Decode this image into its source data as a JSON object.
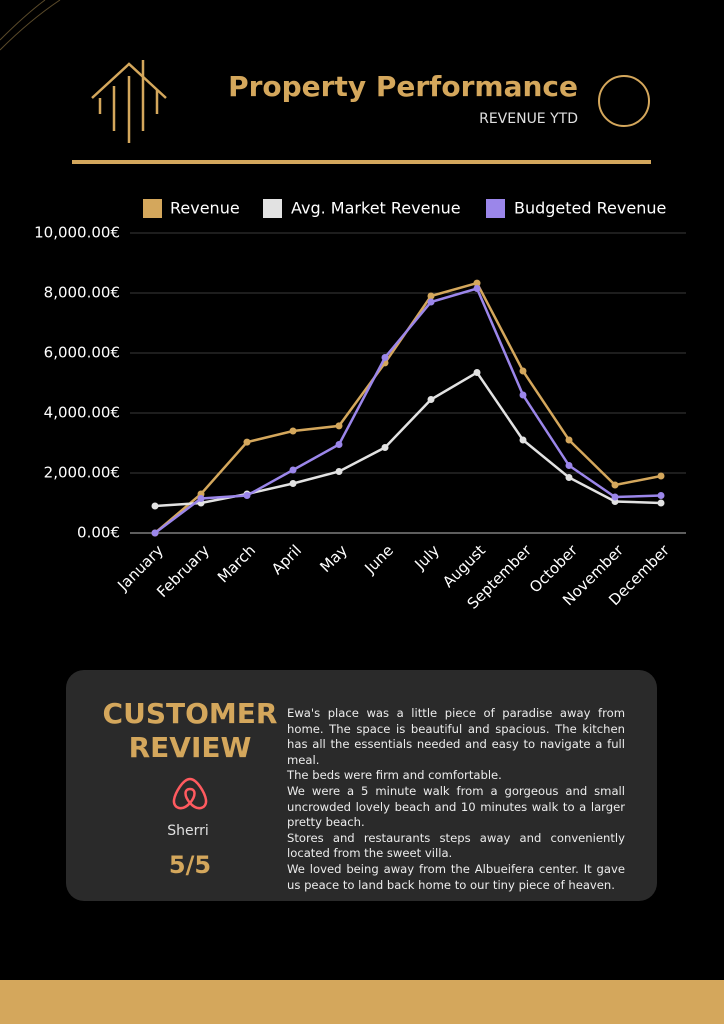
{
  "header": {
    "title": "Property Performance",
    "subtitle": "REVENUE YTD"
  },
  "chart_data": {
    "type": "line",
    "categories": [
      "January",
      "February",
      "March",
      "April",
      "May",
      "June",
      "July",
      "August",
      "September",
      "October",
      "November",
      "December"
    ],
    "series": [
      {
        "name": "Revenue",
        "color": "#d4a75c",
        "values": [
          0,
          1300,
          3030,
          3400,
          3570,
          5670,
          7900,
          8330,
          5400,
          3100,
          1600,
          1900
        ]
      },
      {
        "name": "Avg. Market Revenue",
        "color": "#e2e2e2",
        "values": [
          900,
          1000,
          1300,
          1650,
          2050,
          2850,
          4450,
          5350,
          3100,
          1850,
          1050,
          1000
        ]
      },
      {
        "name": "Budgeted Revenue",
        "color": "#9b86ea",
        "values": [
          0,
          1150,
          1250,
          2100,
          2950,
          5850,
          7700,
          8150,
          4600,
          2250,
          1200,
          1250
        ]
      }
    ],
    "ylim": [
      0,
      10000
    ],
    "yticks": [
      {
        "value": 0,
        "label": "0.00€"
      },
      {
        "value": 2000,
        "label": "2,000.00€"
      },
      {
        "value": 4000,
        "label": "4,000.00€"
      },
      {
        "value": 6000,
        "label": "6,000.00€"
      },
      {
        "value": 8000,
        "label": "8,000.00€"
      },
      {
        "value": 10000,
        "label": "10,000.00€"
      }
    ],
    "grid": true
  },
  "review": {
    "heading": [
      "CUSTOMER",
      "REVIEW"
    ],
    "name": "Sherri",
    "rating": "5/5",
    "paragraphs": [
      "Ewa's place was a little piece of paradise away from home. The space is beautiful and spacious. The kitchen has all the essentials needed and easy to navigate a full meal.",
      "The beds were firm and comfortable.",
      "We were a 5 minute walk from a gorgeous and small uncrowded lovely beach and 10 minutes walk to a larger pretty beach.",
      "Stores and restaurants steps away and conveniently located from the sweet villa.",
      "We loved being away from the Albueifera center. It gave us peace to land back home to our tiny piece of heaven."
    ]
  }
}
